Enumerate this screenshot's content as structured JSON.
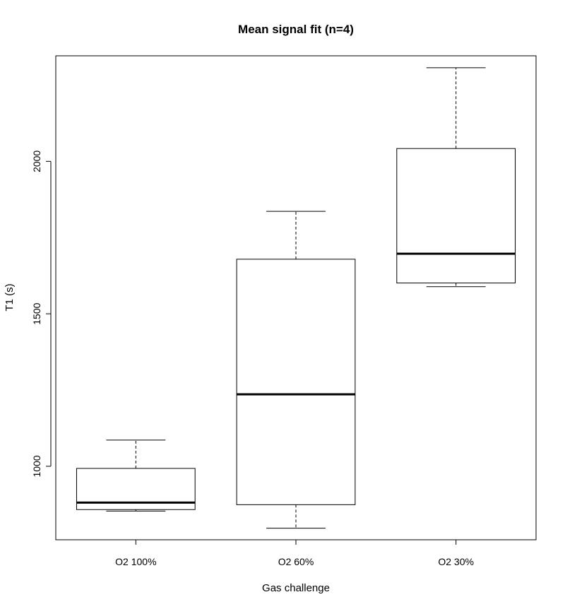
{
  "chart_data": {
    "type": "boxplot",
    "title": "Mean signal fit (n=4)",
    "xlabel": "Gas challenge",
    "ylabel": "T1 (s)",
    "categories": [
      "O2 100%",
      "O2 60%",
      "O2 30%"
    ],
    "boxes": [
      {
        "category": "O2 100%",
        "whisker_low": 853,
        "q1": 858,
        "median": 881,
        "q3": 993,
        "whisker_high": 1086
      },
      {
        "category": "O2 60%",
        "whisker_low": 797,
        "q1": 874,
        "median": 1236,
        "q3": 1679,
        "whisker_high": 1836
      },
      {
        "category": "O2 30%",
        "whisker_low": 1589,
        "q1": 1601,
        "median": 1697,
        "q3": 2042,
        "whisker_high": 2307
      }
    ],
    "yticks": [
      1000,
      1500,
      2000
    ],
    "ylim": [
      759,
      2346
    ],
    "grid": false,
    "legend": "none"
  }
}
